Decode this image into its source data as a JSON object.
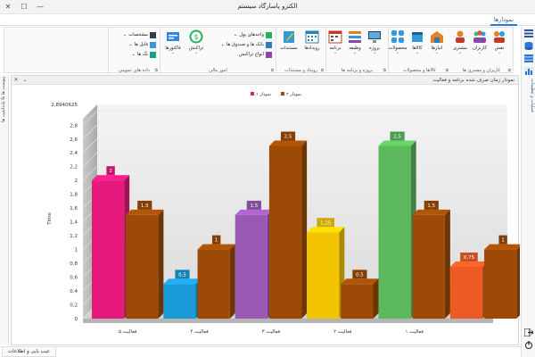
{
  "window": {
    "title": "الکترو پاسارگاد سیستم",
    "minimize": "—",
    "maximize": "☐",
    "close": "✕"
  },
  "ribbon_tab": "نمودارها",
  "ribbon": {
    "groups": [
      {
        "label": "کاربران و مشتری ها",
        "buttons": [
          {
            "label": "نقش",
            "icon": "role-icon",
            "dropdown": "⌄"
          },
          {
            "label": "کاربران",
            "icon": "users-icon",
            "dropdown": "⌄"
          },
          {
            "label": "مشتری",
            "icon": "customer-icon",
            "dropdown": "⌄"
          }
        ]
      },
      {
        "label": "کالاها و محصولات",
        "buttons": [
          {
            "label": "انبارها",
            "icon": "warehouse-icon",
            "dropdown": "⌄"
          },
          {
            "label": "کالاها",
            "icon": "goods-icon",
            "dropdown": "⌄"
          },
          {
            "label": "محصولات",
            "icon": "products-icon",
            "dropdown": "⌄"
          }
        ]
      },
      {
        "label": "پروژه و برنامه ها",
        "buttons": [
          {
            "label": "پروژه",
            "icon": "project-icon",
            "dropdown": "⌄"
          },
          {
            "label": "وظیفه",
            "icon": "task-icon",
            "dropdown": "⌄"
          },
          {
            "label": "برنامه",
            "icon": "program-icon",
            "dropdown": "⌄"
          }
        ]
      },
      {
        "label": "رویداد و مستندات",
        "buttons": [
          {
            "label": "رویدادها",
            "icon": "calendar-icon",
            "dropdown": ""
          },
          {
            "label": "مستندات",
            "icon": "documents-icon",
            "dropdown": ""
          }
        ]
      },
      {
        "label": "امور مالی",
        "small": [
          {
            "label": "واحدهای پول",
            "icon": "currency-icon"
          },
          {
            "label": "بانک ها و صندوق ها",
            "icon": "bank-icon"
          },
          {
            "label": "انواع تراکنش",
            "icon": "transaction-type-icon"
          }
        ],
        "buttons": [
          {
            "label": "تراکنش",
            "icon": "transaction-icon",
            "dropdown": "⌄"
          },
          {
            "label": "فاکتورها",
            "icon": "invoice-icon",
            "dropdown": "⌄"
          }
        ]
      },
      {
        "label": "داده های عمومی",
        "small": [
          {
            "label": "مشخصات",
            "icon": "specs-icon"
          },
          {
            "label": "فایل ها",
            "icon": "files-icon"
          },
          {
            "label": "تگ ها",
            "icon": "tags-icon"
          }
        ]
      }
    ]
  },
  "side_left_label": "پیوست ها & یادداشت ها",
  "side_right_label": "عملیات و تنظیمات",
  "document": {
    "title": "نمودار زمان صرف شده برنامه و فعالیت"
  },
  "status_tab": "عیب یابی و اطلاعات",
  "colors": {
    "series2": "#9c4a06",
    "accent": "#2b79d6"
  },
  "chart_data": {
    "type": "bar",
    "ylabel": "Time",
    "ymax_label": "2,8940625",
    "yticks": [
      "0",
      "0,2",
      "0,4",
      "0,6",
      "0,8",
      "1",
      "1,2",
      "1,4",
      "1,6",
      "1,8",
      "2",
      "2,2",
      "2,4",
      "2,6",
      "2,8"
    ],
    "ylim": [
      0,
      2.8940625
    ],
    "categories": [
      "فعالیت ۵",
      "فعالیت ۴",
      "فعالیت ۳",
      "فعالیت ۲",
      "فعالیت ۱"
    ],
    "legend": [
      {
        "name": "نمودار ۱",
        "color": "#e6197d"
      },
      {
        "name": "نمودار ۲",
        "color": "#9c4a06"
      }
    ],
    "series": [
      {
        "name": "نمودار ۱",
        "values": [
          2,
          0.5,
          1.5,
          1.25,
          2.5
        ],
        "labels": [
          "2",
          "0,5",
          "1,5",
          "1,25",
          "2,5"
        ],
        "colors": [
          "#e6197d",
          "#1a9ad6",
          "#9b59b6",
          "#f2c500",
          "#5cb85c"
        ]
      },
      {
        "name": "نمودار ۲",
        "values": [
          1.5,
          1,
          2.5,
          0.5,
          1.5
        ],
        "labels": [
          "1,5",
          "1",
          "2,5",
          "0,5",
          "1,5"
        ],
        "colors": [
          "#9c4a06",
          "#9c4a06",
          "#9c4a06",
          "#9c4a06",
          "#9c4a06"
        ]
      }
    ],
    "extra_bars": [
      {
        "values": [
          0.75,
          1
        ],
        "labels": [
          "0,75",
          "1"
        ],
        "colors": [
          "#ee5a24",
          "#9c4a06"
        ]
      }
    ],
    "legend_position": "top-center"
  }
}
